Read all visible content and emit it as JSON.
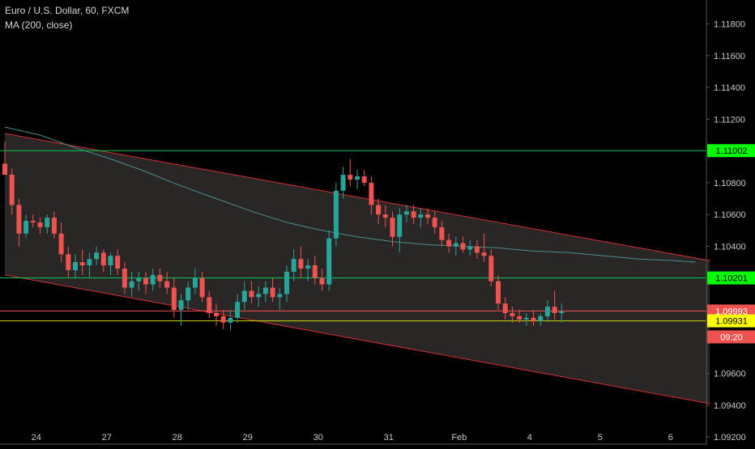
{
  "legend": {
    "symbol_line": "Euro / U.S. Dollar, 60, FXCM",
    "indicator_line": "MA (200, close)"
  },
  "price_axis": {
    "labels": [
      "1.11800",
      "1.11600",
      "1.11400",
      "1.11200",
      "1.10800",
      "1.10600",
      "1.10400",
      "1.09600",
      "1.09400",
      "1.09200"
    ],
    "values": [
      1.118,
      1.116,
      1.114,
      1.112,
      1.108,
      1.106,
      1.104,
      1.096,
      1.094,
      1.092
    ]
  },
  "time_axis": {
    "labels": [
      "24",
      "27",
      "28",
      "29",
      "30",
      "31",
      "Feb",
      "4",
      "5",
      "6"
    ],
    "bar_index": [
      4,
      14,
      24,
      34,
      44,
      54,
      64,
      74,
      84,
      94
    ]
  },
  "tags": [
    {
      "text": "1.11002",
      "value": 1.11002,
      "bg": "#00ff00",
      "fg": "#000000"
    },
    {
      "text": "1.10201",
      "value": 1.10201,
      "bg": "#00ff00",
      "fg": "#000000"
    },
    {
      "text": "1.09993",
      "value": 1.09993,
      "bg": "#ef5350",
      "fg": "#ffffff"
    },
    {
      "text": "09:20",
      "value": 1.0983,
      "bg": "#ef5350",
      "fg": "#ffffff"
    },
    {
      "text": "1.09931",
      "value": 1.09931,
      "bg": "#ffff00",
      "fg": "#000000"
    }
  ],
  "colors": {
    "background": "#000000",
    "up": "#26a69a",
    "down": "#ef5350",
    "ma": "#4a8c8c",
    "channel": "#d32f2f",
    "channel_fill": "#2a2626",
    "support_line": "#00c853",
    "yellow_line": "#d4d400",
    "axis_text": "#c8c8c8"
  },
  "chart_data": {
    "type": "candlestick",
    "symbol": "Euro / U.S. Dollar",
    "interval": "60",
    "source": "FXCM",
    "ylim": [
      1.0915,
      1.1195
    ],
    "bars_per_label": 10,
    "horizontal_lines": [
      1.11002,
      1.10201,
      1.09931,
      1.09993
    ],
    "channel": {
      "upper": {
        "start": [
          0,
          1.1111
        ],
        "end": [
          100,
          1.1031
        ]
      },
      "lower": {
        "start": [
          0,
          1.1022
        ],
        "end": [
          100,
          1.0941
        ]
      }
    },
    "ma_200": {
      "x": [
        0,
        5,
        10,
        15,
        20,
        25,
        30,
        35,
        40,
        45,
        50,
        55,
        60,
        65,
        70,
        75,
        80,
        85,
        90,
        95,
        98
      ],
      "y": [
        1.1115,
        1.111,
        1.1102,
        1.1095,
        1.1087,
        1.1078,
        1.107,
        1.1062,
        1.1055,
        1.105,
        1.1046,
        1.1043,
        1.1041,
        1.104,
        1.1039,
        1.1037,
        1.1036,
        1.1034,
        1.1032,
        1.1031,
        1.103
      ]
    },
    "candles": [
      [
        1.1092,
        1.1106,
        1.1085,
        1.1085
      ],
      [
        1.1085,
        1.1089,
        1.106,
        1.1066
      ],
      [
        1.1066,
        1.107,
        1.104,
        1.1048
      ],
      [
        1.1048,
        1.106,
        1.1045,
        1.1056
      ],
      [
        1.1056,
        1.106,
        1.1052,
        1.1055
      ],
      [
        1.1055,
        1.1058,
        1.1048,
        1.1052
      ],
      [
        1.1052,
        1.106,
        1.1048,
        1.1058
      ],
      [
        1.1058,
        1.1062,
        1.1045,
        1.1048
      ],
      [
        1.1048,
        1.1055,
        1.103,
        1.1035
      ],
      [
        1.1035,
        1.104,
        1.102,
        1.1025
      ],
      [
        1.1025,
        1.1035,
        1.102,
        1.103
      ],
      [
        1.103,
        1.1038,
        1.1022,
        1.1028
      ],
      [
        1.1028,
        1.1036,
        1.102,
        1.1032
      ],
      [
        1.1032,
        1.104,
        1.1028,
        1.1036
      ],
      [
        1.1036,
        1.1038,
        1.1024,
        1.1028
      ],
      [
        1.1028,
        1.1036,
        1.1022,
        1.1034
      ],
      [
        1.1034,
        1.1038,
        1.1022,
        1.1026
      ],
      [
        1.1026,
        1.103,
        1.101,
        1.1014
      ],
      [
        1.1014,
        1.1024,
        1.1008,
        1.1018
      ],
      [
        1.1018,
        1.1024,
        1.1012,
        1.102
      ],
      [
        1.102,
        1.1024,
        1.101,
        1.1016
      ],
      [
        1.1016,
        1.1026,
        1.1012,
        1.1022
      ],
      [
        1.1022,
        1.1026,
        1.1014,
        1.1018
      ],
      [
        1.1018,
        1.1024,
        1.101,
        1.1014
      ],
      [
        1.1014,
        1.102,
        1.0995,
        1.1
      ],
      [
        1.1,
        1.101,
        1.099,
        1.1006
      ],
      [
        1.1006,
        1.1018,
        1.1,
        1.1014
      ],
      [
        1.1014,
        1.1026,
        1.101,
        1.102
      ],
      [
        1.102,
        1.1024,
        1.1005,
        1.1008
      ],
      [
        1.1008,
        1.1012,
        1.0995,
        1.0998
      ],
      [
        1.0998,
        1.1004,
        1.099,
        1.0996
      ],
      [
        1.0996,
        1.1,
        1.0988,
        1.0992
      ],
      [
        1.0992,
        1.1,
        1.0987,
        1.0995
      ],
      [
        1.0995,
        1.101,
        1.0992,
        1.1005
      ],
      [
        1.1005,
        1.1018,
        1.1,
        1.1012
      ],
      [
        1.1012,
        1.1018,
        1.1004,
        1.1008
      ],
      [
        1.1008,
        1.1015,
        1.1002,
        1.101
      ],
      [
        1.101,
        1.1018,
        1.1005,
        1.1014
      ],
      [
        1.1014,
        1.102,
        1.1005,
        1.1008
      ],
      [
        1.1008,
        1.1014,
        1.1,
        1.101
      ],
      [
        1.101,
        1.1028,
        1.1005,
        1.1024
      ],
      [
        1.1024,
        1.1038,
        1.1018,
        1.1032
      ],
      [
        1.1032,
        1.104,
        1.102,
        1.1026
      ],
      [
        1.1026,
        1.1032,
        1.1018,
        1.1028
      ],
      [
        1.1028,
        1.1034,
        1.1016,
        1.102
      ],
      [
        1.102,
        1.1026,
        1.1012,
        1.1016
      ],
      [
        1.1016,
        1.105,
        1.1012,
        1.1045
      ],
      [
        1.1045,
        1.108,
        1.104,
        1.1075
      ],
      [
        1.1075,
        1.109,
        1.107,
        1.1085
      ],
      [
        1.1085,
        1.1095,
        1.1078,
        1.1082
      ],
      [
        1.1082,
        1.1088,
        1.1076,
        1.1084
      ],
      [
        1.1084,
        1.1088,
        1.1078,
        1.108
      ],
      [
        1.108,
        1.1084,
        1.106,
        1.1066
      ],
      [
        1.1066,
        1.107,
        1.1054,
        1.106
      ],
      [
        1.106,
        1.1066,
        1.1052,
        1.1058
      ],
      [
        1.1058,
        1.1062,
        1.104,
        1.1046
      ],
      [
        1.1046,
        1.1064,
        1.1036,
        1.106
      ],
      [
        1.106,
        1.1066,
        1.1055,
        1.1062
      ],
      [
        1.1062,
        1.1066,
        1.1054,
        1.1058
      ],
      [
        1.1058,
        1.1064,
        1.1052,
        1.106
      ],
      [
        1.106,
        1.1064,
        1.1054,
        1.1058
      ],
      [
        1.1058,
        1.1062,
        1.1048,
        1.1052
      ],
      [
        1.1052,
        1.1056,
        1.104,
        1.1044
      ],
      [
        1.1044,
        1.1048,
        1.1036,
        1.104
      ],
      [
        1.104,
        1.1046,
        1.1034,
        1.1042
      ],
      [
        1.1042,
        1.1046,
        1.1036,
        1.1038
      ],
      [
        1.1038,
        1.1044,
        1.1034,
        1.104
      ],
      [
        1.104,
        1.1044,
        1.1032,
        1.1036
      ],
      [
        1.1036,
        1.1048,
        1.103,
        1.1034
      ],
      [
        1.1034,
        1.1038,
        1.1015,
        1.1018
      ],
      [
        1.1018,
        1.1022,
        1.1,
        1.1004
      ],
      [
        1.1004,
        1.1008,
        1.0994,
        1.0998
      ],
      [
        1.0998,
        1.1002,
        1.0992,
        1.0996
      ],
      [
        1.0996,
        1.1,
        1.0992,
        1.0994
      ],
      [
        1.0994,
        1.0998,
        1.099,
        1.0995
      ],
      [
        1.0995,
        1.1,
        1.099,
        1.0993
      ],
      [
        1.0993,
        1.0998,
        1.099,
        1.0996
      ],
      [
        1.0996,
        1.1006,
        1.0992,
        1.1002
      ],
      [
        1.1002,
        1.1012,
        1.0994,
        1.0998
      ],
      [
        1.0998,
        1.1004,
        1.0992,
        1.0999
      ]
    ]
  }
}
